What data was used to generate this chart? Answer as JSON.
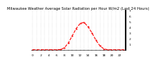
{
  "title": "Milwaukee Weather Average Solar Radiation per Hour W/m2 (Last 24 Hours)",
  "hours": [
    0,
    1,
    2,
    3,
    4,
    5,
    6,
    7,
    8,
    9,
    10,
    11,
    12,
    13,
    14,
    15,
    16,
    17,
    18,
    19,
    20,
    21,
    22,
    23
  ],
  "values": [
    0,
    0,
    0,
    0,
    0,
    0,
    0,
    4,
    35,
    120,
    250,
    380,
    470,
    490,
    410,
    300,
    170,
    70,
    15,
    1,
    0,
    0,
    0,
    0
  ],
  "line_color": "#ff0000",
  "bg_color": "#ffffff",
  "grid_color": "#888888",
  "text_color": "#000000",
  "ylim": [
    0,
    700
  ],
  "yticks": [
    100,
    200,
    300,
    400,
    500,
    600,
    700
  ],
  "ytick_labels": [
    "1",
    "2",
    "3",
    "4",
    "5",
    "6",
    "7"
  ],
  "xtick_step": 1,
  "title_fontsize": 3.8,
  "axis_fontsize": 3.2,
  "line_width": 0.8,
  "marker_size": 1.2
}
